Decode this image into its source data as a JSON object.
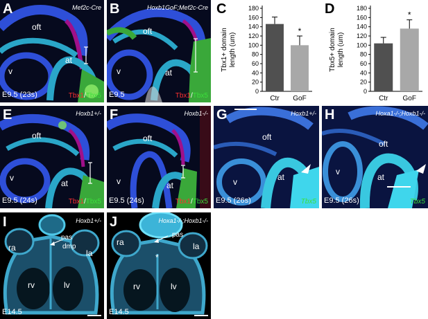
{
  "panels": {
    "A": {
      "letter": "A",
      "genotype": "Mef2c-Cre",
      "stage": "E9.5 (23s)",
      "marker_red": "Tbx1",
      "marker_sep": "/",
      "marker_green": "Tbx5",
      "oft": "oft",
      "v": "v",
      "at": "at"
    },
    "B": {
      "letter": "B",
      "genotype": "Hoxb1GoF;Mef2c-Cre",
      "stage": "E9.5",
      "marker_red": "Tbx1",
      "marker_sep": "/",
      "marker_green": "Tbx5",
      "oft": "oft",
      "v": "v",
      "at": "at"
    },
    "E": {
      "letter": "E",
      "genotype": "Hoxb1+/-",
      "stage": "E9.5 (24s)",
      "marker_red": "Tbx1",
      "marker_sep": "/",
      "marker_green": "Tbx5",
      "oft": "oft",
      "v": "v",
      "at": "at"
    },
    "F": {
      "letter": "F",
      "genotype": "Hoxb1-/-",
      "stage": "E9.5 (24s)",
      "marker_red": "Tbx1",
      "marker_sep": "/",
      "marker_green": "Tbx5",
      "oft": "oft",
      "v": "v",
      "at": "at"
    },
    "G": {
      "letter": "G",
      "genotype": "Hoxb1+/-",
      "stage": "E9.5 (26s)",
      "marker": "Tbx5",
      "oft": "oft",
      "v": "v",
      "at": "at"
    },
    "H": {
      "letter": "H",
      "genotype": "Hoxa1-/-;Hoxb1-/-",
      "stage": "E9.5 (26s)",
      "marker": "Tbx5",
      "oft": "oft",
      "v": "v",
      "at": "at"
    },
    "I": {
      "letter": "I",
      "genotype": "Hoxb1+/-",
      "stage": "E14.5",
      "ra": "ra",
      "la": "la",
      "pas": "pas",
      "dmp": "dmp",
      "rv": "rv",
      "lv": "lv"
    },
    "J": {
      "letter": "J",
      "genotype": "Hoxa1-/-;Hoxb1-/-",
      "stage": "E14.5",
      "ra": "ra",
      "la": "la",
      "pas": "pas",
      "asterisk": "*",
      "rv": "rv",
      "lv": "lv"
    }
  },
  "chart_data": [
    {
      "letter": "C",
      "type": "bar",
      "categories": [
        "Ctr",
        "GoF"
      ],
      "values": [
        146,
        100
      ],
      "errors": [
        15,
        20
      ],
      "significance": [
        "",
        "*"
      ],
      "ylabel": "Tbx1+ domain length (um)",
      "ylabel_lines": [
        "Tbx1+ domain",
        "length (um)"
      ],
      "ylim": [
        0,
        180
      ],
      "yticks": [
        0,
        20,
        40,
        60,
        80,
        100,
        120,
        140,
        160,
        180
      ],
      "colors": [
        "#505050",
        "#a8a8a8"
      ]
    },
    {
      "letter": "D",
      "type": "bar",
      "categories": [
        "Ctr",
        "GoF"
      ],
      "values": [
        104,
        136
      ],
      "errors": [
        13,
        19
      ],
      "significance": [
        "",
        "*"
      ],
      "ylabel": "Tbx5+ domain length (um)",
      "ylabel_lines": [
        "Tbx5+ domain",
        "length (um)"
      ],
      "ylim": [
        0,
        180
      ],
      "yticks": [
        0,
        20,
        40,
        60,
        80,
        100,
        120,
        140,
        160,
        180
      ],
      "colors": [
        "#505050",
        "#a8a8a8"
      ]
    }
  ]
}
